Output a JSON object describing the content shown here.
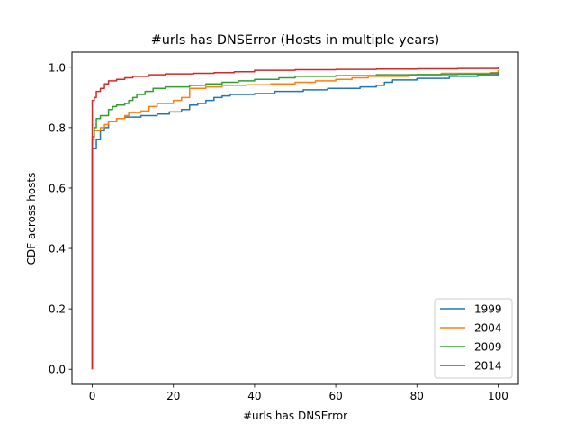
{
  "chart_data": {
    "type": "line",
    "title": "#urls has DNSError (Hosts in multiple years)",
    "xlabel": "#urls has DNSError",
    "ylabel": "CDF across hosts",
    "xlim": [
      -5,
      105
    ],
    "ylim": [
      -0.05,
      1.05
    ],
    "xticks": [
      0,
      20,
      40,
      60,
      80,
      100
    ],
    "yticks": [
      0.0,
      0.2,
      0.4,
      0.6,
      0.8,
      1.0
    ],
    "xtick_labels": [
      "0",
      "20",
      "40",
      "60",
      "80",
      "100"
    ],
    "ytick_labels": [
      "0.0",
      "0.2",
      "0.4",
      "0.6",
      "0.8",
      "1.0"
    ],
    "grid": false,
    "legend_position": "lower-right",
    "step": true,
    "series": [
      {
        "name": "1999",
        "color": "#1f77b4",
        "points": [
          [
            0,
            0.0
          ],
          [
            0,
            0.73
          ],
          [
            1,
            0.73
          ],
          [
            1,
            0.76
          ],
          [
            2,
            0.76
          ],
          [
            2,
            0.79
          ],
          [
            3,
            0.79
          ],
          [
            3,
            0.8
          ],
          [
            4,
            0.8
          ],
          [
            4,
            0.82
          ],
          [
            6,
            0.82
          ],
          [
            6,
            0.83
          ],
          [
            8,
            0.83
          ],
          [
            8,
            0.835
          ],
          [
            12,
            0.84
          ],
          [
            16,
            0.845
          ],
          [
            19,
            0.852
          ],
          [
            22,
            0.86
          ],
          [
            24,
            0.865
          ],
          [
            24,
            0.875
          ],
          [
            26,
            0.88
          ],
          [
            28,
            0.89
          ],
          [
            30,
            0.9
          ],
          [
            32,
            0.905
          ],
          [
            34,
            0.91
          ],
          [
            40,
            0.913
          ],
          [
            45,
            0.92
          ],
          [
            52,
            0.925
          ],
          [
            58,
            0.93
          ],
          [
            66,
            0.935
          ],
          [
            70,
            0.94
          ],
          [
            72,
            0.95
          ],
          [
            74,
            0.958
          ],
          [
            80,
            0.963
          ],
          [
            88,
            0.97
          ],
          [
            95,
            0.975
          ],
          [
            100,
            0.98
          ]
        ]
      },
      {
        "name": "2004",
        "color": "#ff7f0e",
        "points": [
          [
            0,
            0.0
          ],
          [
            0,
            0.76
          ],
          [
            0.5,
            0.76
          ],
          [
            0.5,
            0.79
          ],
          [
            2,
            0.8
          ],
          [
            3,
            0.81
          ],
          [
            4,
            0.82
          ],
          [
            5,
            0.82
          ],
          [
            6,
            0.83
          ],
          [
            8,
            0.84
          ],
          [
            9,
            0.85
          ],
          [
            12,
            0.855
          ],
          [
            14,
            0.87
          ],
          [
            16,
            0.88
          ],
          [
            20,
            0.89
          ],
          [
            22,
            0.9
          ],
          [
            24,
            0.91
          ],
          [
            24,
            0.93
          ],
          [
            28,
            0.935
          ],
          [
            32,
            0.94
          ],
          [
            38,
            0.942
          ],
          [
            44,
            0.945
          ],
          [
            50,
            0.95
          ],
          [
            55,
            0.955
          ],
          [
            60,
            0.96
          ],
          [
            64,
            0.965
          ],
          [
            68,
            0.97
          ],
          [
            78,
            0.975
          ],
          [
            86,
            0.98
          ],
          [
            92,
            0.98
          ],
          [
            98,
            0.982
          ],
          [
            100,
            0.99
          ]
        ]
      },
      {
        "name": "2009",
        "color": "#2ca02c",
        "points": [
          [
            0,
            0.0
          ],
          [
            0,
            0.77
          ],
          [
            0.5,
            0.77
          ],
          [
            0.5,
            0.8
          ],
          [
            1,
            0.8
          ],
          [
            1,
            0.83
          ],
          [
            2,
            0.83
          ],
          [
            2,
            0.84
          ],
          [
            3,
            0.84
          ],
          [
            4,
            0.86
          ],
          [
            5,
            0.87
          ],
          [
            6,
            0.875
          ],
          [
            8,
            0.88
          ],
          [
            9,
            0.89
          ],
          [
            10,
            0.9
          ],
          [
            11,
            0.91
          ],
          [
            13,
            0.92
          ],
          [
            15,
            0.93
          ],
          [
            18,
            0.935
          ],
          [
            24,
            0.94
          ],
          [
            28,
            0.945
          ],
          [
            32,
            0.95
          ],
          [
            36,
            0.955
          ],
          [
            40,
            0.96
          ],
          [
            46,
            0.965
          ],
          [
            50,
            0.97
          ],
          [
            60,
            0.972
          ],
          [
            70,
            0.975
          ],
          [
            80,
            0.976
          ],
          [
            90,
            0.977
          ],
          [
            98,
            0.98
          ],
          [
            100,
            0.985
          ]
        ]
      },
      {
        "name": "2014",
        "color": "#d62728",
        "points": [
          [
            0,
            0.0
          ],
          [
            0,
            0.89
          ],
          [
            0.5,
            0.89
          ],
          [
            0.5,
            0.9
          ],
          [
            1,
            0.9
          ],
          [
            1,
            0.92
          ],
          [
            2,
            0.92
          ],
          [
            2,
            0.93
          ],
          [
            3,
            0.93
          ],
          [
            3,
            0.945
          ],
          [
            4,
            0.945
          ],
          [
            4,
            0.955
          ],
          [
            6,
            0.96
          ],
          [
            8,
            0.965
          ],
          [
            10,
            0.97
          ],
          [
            14,
            0.975
          ],
          [
            18,
            0.978
          ],
          [
            25,
            0.98
          ],
          [
            30,
            0.982
          ],
          [
            35,
            0.985
          ],
          [
            40,
            0.99
          ],
          [
            50,
            0.992
          ],
          [
            60,
            0.993
          ],
          [
            70,
            0.994
          ],
          [
            80,
            0.995
          ],
          [
            90,
            0.996
          ],
          [
            100,
            1.0
          ]
        ]
      }
    ]
  }
}
